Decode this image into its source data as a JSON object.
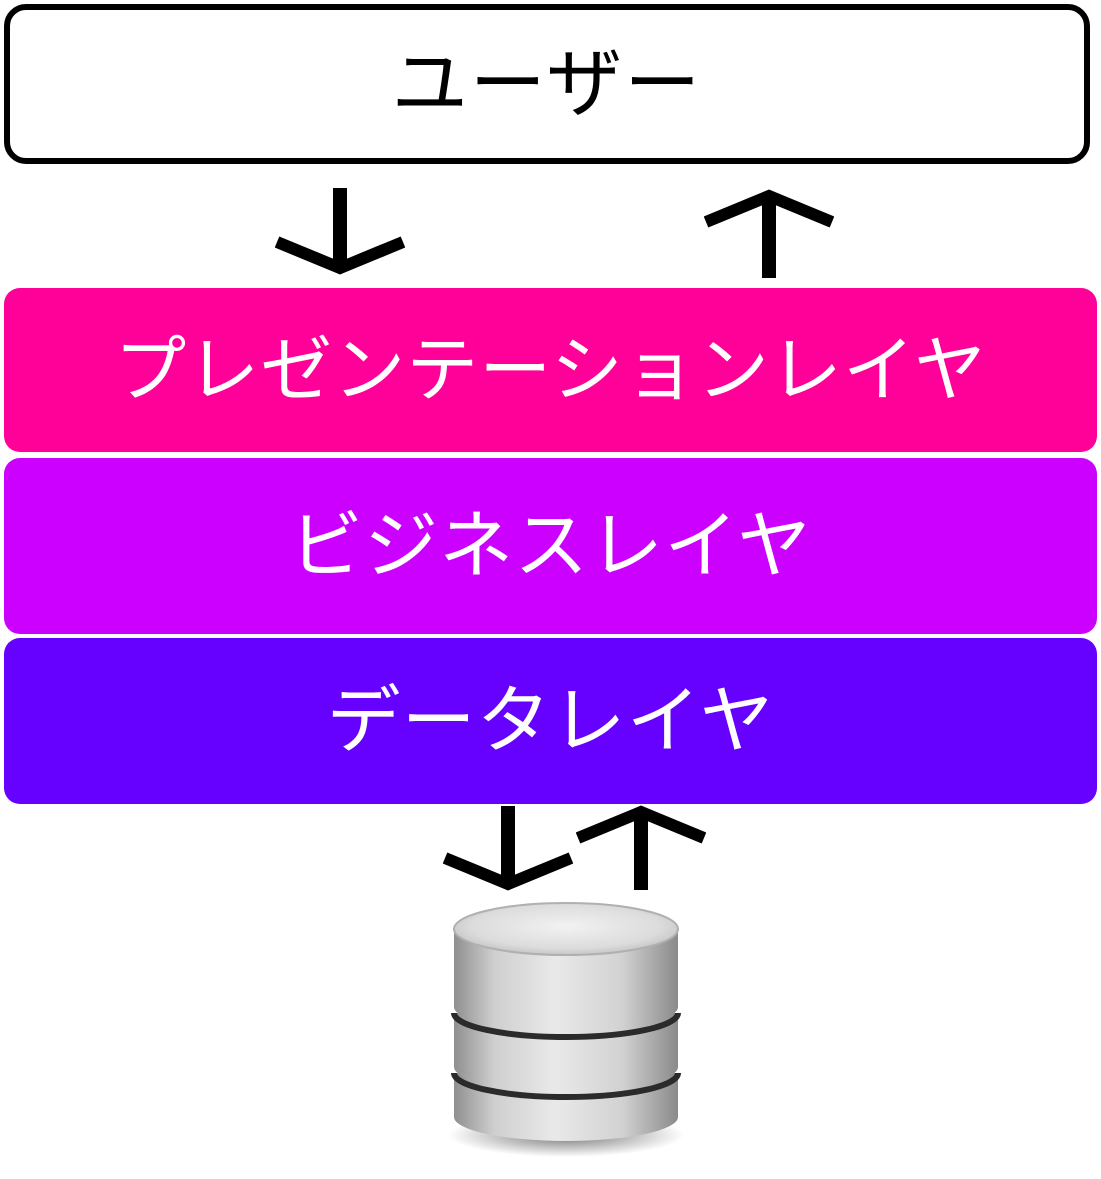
{
  "user": {
    "label": "ユーザー"
  },
  "layers": [
    {
      "label": "プレゼンテーションレイヤ",
      "color": "#ff0099"
    },
    {
      "label": "ビジネスレイヤ",
      "color": "#cc00ff"
    },
    {
      "label": "データレイヤ",
      "color": "#6600ff"
    }
  ],
  "arrows": [
    {
      "direction": "down",
      "icon": "arrow-down-icon"
    },
    {
      "direction": "up",
      "icon": "arrow-up-icon"
    },
    {
      "direction": "down",
      "icon": "arrow-down-icon"
    },
    {
      "direction": "up",
      "icon": "arrow-up-icon"
    }
  ],
  "database": {
    "icon": "database-icon"
  }
}
